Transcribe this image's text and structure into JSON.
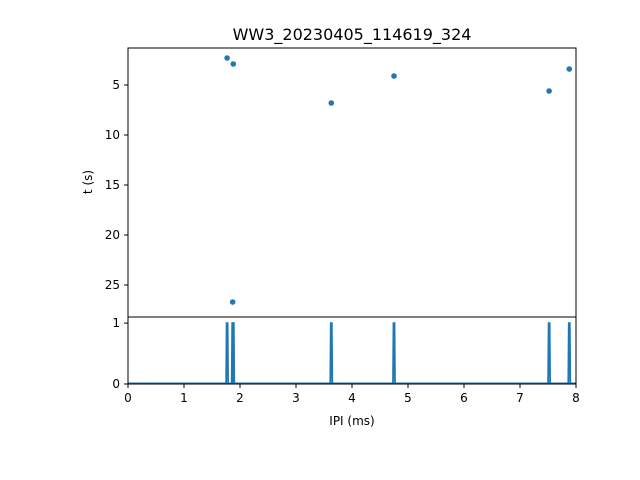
{
  "chart_data": [
    {
      "type": "scatter",
      "title": "WW3_20230405_114619_324",
      "xlabel": "",
      "ylabel": "t (s)",
      "xlim": [
        0,
        8
      ],
      "ylim": [
        28.2,
        1.3
      ],
      "y_inverted": true,
      "yticks": [
        5,
        10,
        15,
        20,
        25
      ],
      "grid": false,
      "color": "#1f77b4",
      "points": [
        {
          "x": 1.77,
          "y": 2.3
        },
        {
          "x": 1.88,
          "y": 2.9
        },
        {
          "x": 3.63,
          "y": 6.8
        },
        {
          "x": 4.75,
          "y": 4.1
        },
        {
          "x": 7.52,
          "y": 5.6
        },
        {
          "x": 7.88,
          "y": 3.4
        },
        {
          "x": 1.87,
          "y": 26.7
        }
      ]
    },
    {
      "type": "line",
      "title": "",
      "xlabel": "IPI (ms)",
      "ylabel": "",
      "xlim": [
        0,
        8
      ],
      "ylim": [
        0,
        1.1
      ],
      "xticks": [
        0,
        1,
        2,
        3,
        4,
        5,
        6,
        7,
        8
      ],
      "yticks": [
        0,
        1
      ],
      "grid": false,
      "color": "#1f77b4",
      "spikes_x": [
        1.77,
        1.87,
        1.88,
        3.63,
        4.75,
        7.52,
        7.88
      ]
    }
  ]
}
